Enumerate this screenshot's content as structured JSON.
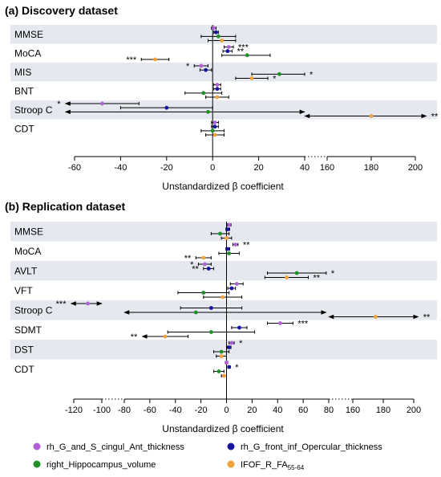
{
  "colors": {
    "rh_G_and_S_cingul_Ant_thickness": "#b05fd6",
    "rh_G_front_inf_Opercular_thickness": "#1414a0",
    "right_Hippocampus_volume": "#1f8f2a",
    "IFOF_R_FA": "#f2a23a",
    "band": "#e6e8f0"
  },
  "legend": [
    {
      "key": "rh_G_and_S_cingul_Ant_thickness",
      "label": "rh_G_and_S_cingul_Ant_thickness",
      "sub": ""
    },
    {
      "key": "rh_G_front_inf_Opercular_thickness",
      "label": "rh_G_front_inf_Opercular_thickness",
      "sub": ""
    },
    {
      "key": "right_Hippocampus_volume",
      "label": "right_Hippocampus_volume",
      "sub": ""
    },
    {
      "key": "IFOF_R_FA",
      "label": "IFOF_R_FA",
      "sub": "55-64"
    }
  ],
  "chart_data": [
    {
      "type": "forest",
      "panel": "(a)",
      "title": "Discovery dataset",
      "xlabel": "Unstandardized β coefficient",
      "axis": {
        "segments": [
          {
            "min": -60,
            "max": 40,
            "ticks": [
              -60,
              -40,
              -20,
              0,
              20,
              40
            ]
          },
          {
            "min": 160,
            "max": 200,
            "ticks": [
              160,
              180,
              200
            ]
          }
        ]
      },
      "rows": [
        {
          "label": "MMSE",
          "estimates": [
            {
              "series": "rh_G_and_S_cingul_Ant_thickness",
              "est": 0.5,
              "lo": -0.5,
              "hi": 1.5,
              "sig": ""
            },
            {
              "series": "rh_G_front_inf_Opercular_thickness",
              "est": 1.5,
              "lo": 0.5,
              "hi": 2.5,
              "sig": ""
            },
            {
              "series": "right_Hippocampus_volume",
              "est": 2.5,
              "lo": -5,
              "hi": 10,
              "sig": ""
            },
            {
              "series": "IFOF_R_FA",
              "est": 4,
              "lo": -2,
              "hi": 10,
              "sig": ""
            }
          ]
        },
        {
          "label": "MoCA",
          "estimates": [
            {
              "series": "rh_G_and_S_cingul_Ant_thickness",
              "est": 7,
              "lo": 5,
              "hi": 9,
              "sig": "***"
            },
            {
              "series": "rh_G_front_inf_Opercular_thickness",
              "est": 6.5,
              "lo": 4.5,
              "hi": 8.5,
              "sig": "**"
            },
            {
              "series": "right_Hippocampus_volume",
              "est": 15,
              "lo": 4,
              "hi": 25,
              "sig": ""
            },
            {
              "series": "IFOF_R_FA",
              "est": -25,
              "lo": -31,
              "hi": -19,
              "sig": "***"
            }
          ]
        },
        {
          "label": "MIS",
          "estimates": [
            {
              "series": "rh_G_and_S_cingul_Ant_thickness",
              "est": -5,
              "lo": -8,
              "hi": -2,
              "sig": "*"
            },
            {
              "series": "rh_G_front_inf_Opercular_thickness",
              "est": -3,
              "lo": -5.5,
              "hi": -0.5,
              "sig": ""
            },
            {
              "series": "right_Hippocampus_volume",
              "est": 29,
              "lo": 17,
              "hi": 41,
              "sig": "*"
            },
            {
              "series": "IFOF_R_FA",
              "est": 17,
              "lo": 10,
              "hi": 24,
              "sig": "*"
            }
          ]
        },
        {
          "label": "BNT",
          "estimates": [
            {
              "series": "rh_G_and_S_cingul_Ant_thickness",
              "est": 2,
              "lo": 0.5,
              "hi": 3.5,
              "sig": ""
            },
            {
              "series": "rh_G_front_inf_Opercular_thickness",
              "est": 2,
              "lo": 0.5,
              "hi": 3.5,
              "sig": ""
            },
            {
              "series": "right_Hippocampus_volume",
              "est": -4,
              "lo": -12,
              "hi": 4,
              "sig": ""
            },
            {
              "series": "IFOF_R_FA",
              "est": 2,
              "lo": -3,
              "hi": 7,
              "sig": ""
            }
          ]
        },
        {
          "label": "Stroop C",
          "estimates": [
            {
              "series": "rh_G_and_S_cingul_Ant_thickness",
              "est": -48,
              "lo": -64,
              "hi": -32,
              "arrowLo": true,
              "sig": "*"
            },
            {
              "series": "rh_G_front_inf_Opercular_thickness",
              "est": -20,
              "lo": -40,
              "hi": 0,
              "sig": ""
            },
            {
              "series": "right_Hippocampus_volume",
              "est": -2,
              "lo": -64,
              "hi": 45,
              "arrowLo": true,
              "arrowHi": true,
              "sig": ""
            },
            {
              "series": "IFOF_R_FA",
              "est": 180,
              "lo": 155,
              "hi": 205,
              "arrowLo": true,
              "arrowHi": true,
              "sig": "**"
            }
          ]
        },
        {
          "label": "CDT",
          "estimates": [
            {
              "series": "rh_G_and_S_cingul_Ant_thickness",
              "est": 1,
              "lo": -0.5,
              "hi": 2.5,
              "sig": ""
            },
            {
              "series": "rh_G_front_inf_Opercular_thickness",
              "est": 1,
              "lo": -0.5,
              "hi": 2.5,
              "sig": ""
            },
            {
              "series": "right_Hippocampus_volume",
              "est": 0,
              "lo": -5,
              "hi": 5,
              "sig": ""
            },
            {
              "series": "IFOF_R_FA",
              "est": 1,
              "lo": -3,
              "hi": 5,
              "sig": ""
            }
          ]
        }
      ]
    },
    {
      "type": "forest",
      "panel": "(b)",
      "title": "Replication dataset",
      "xlabel": "Unstandardized β coefficient",
      "axis": {
        "segments": [
          {
            "min": -120,
            "max": -100,
            "ticks": [
              -120,
              -100
            ]
          },
          {
            "min": -80,
            "max": 80,
            "ticks": [
              -80,
              -60,
              -40,
              -20,
              0,
              20,
              40,
              60,
              80
            ]
          },
          {
            "min": 160,
            "max": 200,
            "ticks": [
              160,
              180,
              200
            ]
          }
        ]
      },
      "rows": [
        {
          "label": "MMSE",
          "estimates": [
            {
              "series": "rh_G_and_S_cingul_Ant_thickness",
              "est": 2,
              "lo": 0.5,
              "hi": 3.5,
              "sig": ""
            },
            {
              "series": "rh_G_front_inf_Opercular_thickness",
              "est": 1,
              "lo": -0.5,
              "hi": 2.5,
              "sig": ""
            },
            {
              "series": "right_Hippocampus_volume",
              "est": -5,
              "lo": -12,
              "hi": 2,
              "sig": ""
            },
            {
              "series": "IFOF_R_FA",
              "est": 0,
              "lo": -4,
              "hi": 4,
              "sig": ""
            }
          ]
        },
        {
          "label": "MoCA",
          "estimates": [
            {
              "series": "rh_G_and_S_cingul_Ant_thickness",
              "est": 7,
              "lo": 5,
              "hi": 9,
              "sig": "**"
            },
            {
              "series": "rh_G_front_inf_Opercular_thickness",
              "est": 1,
              "lo": -0.5,
              "hi": 2.5,
              "sig": ""
            },
            {
              "series": "right_Hippocampus_volume",
              "est": 2,
              "lo": -6,
              "hi": 10,
              "sig": ""
            },
            {
              "series": "IFOF_R_FA",
              "est": -18,
              "lo": -24,
              "hi": -12,
              "sig": "**"
            }
          ]
        },
        {
          "label": "AVLT",
          "estimates": [
            {
              "series": "rh_G_and_S_cingul_Ant_thickness",
              "est": -17,
              "lo": -22,
              "hi": -12,
              "sig": "*"
            },
            {
              "series": "rh_G_front_inf_Opercular_thickness",
              "est": -14,
              "lo": -18,
              "hi": -10,
              "sig": "**"
            },
            {
              "series": "right_Hippocampus_volume",
              "est": 55,
              "lo": 32,
              "hi": 78,
              "sig": "*"
            },
            {
              "series": "IFOF_R_FA",
              "est": 47,
              "lo": 30,
              "hi": 64,
              "sig": "**"
            }
          ]
        },
        {
          "label": "VFT",
          "estimates": [
            {
              "series": "rh_G_and_S_cingul_Ant_thickness",
              "est": 8,
              "lo": 3,
              "hi": 13,
              "sig": ""
            },
            {
              "series": "rh_G_front_inf_Opercular_thickness",
              "est": 4,
              "lo": 1,
              "hi": 7,
              "sig": ""
            },
            {
              "series": "right_Hippocampus_volume",
              "est": -18,
              "lo": -38,
              "hi": 2,
              "sig": ""
            },
            {
              "series": "IFOF_R_FA",
              "est": -3,
              "lo": -18,
              "hi": 12,
              "sig": ""
            }
          ]
        },
        {
          "label": "Stroop C",
          "estimates": [
            {
              "series": "rh_G_and_S_cingul_Ant_thickness",
              "est": -110,
              "lo": -122,
              "hi": -98,
              "arrowLo": true,
              "arrowHi": true,
              "sig": "***"
            },
            {
              "series": "rh_G_front_inf_Opercular_thickness",
              "est": -12,
              "lo": -36,
              "hi": 12,
              "sig": ""
            },
            {
              "series": "right_Hippocampus_volume",
              "est": -24,
              "lo": -80,
              "hi": 78,
              "arrowLo": true,
              "arrowHi": true,
              "sig": ""
            },
            {
              "series": "IFOF_R_FA",
              "est": 175,
              "lo": 155,
              "hi": 203,
              "arrowLo": true,
              "arrowHi": true,
              "sig": "**"
            }
          ]
        },
        {
          "label": "SDMT",
          "estimates": [
            {
              "series": "rh_G_and_S_cingul_Ant_thickness",
              "est": 42,
              "lo": 32,
              "hi": 52,
              "sig": "***"
            },
            {
              "series": "rh_G_front_inf_Opercular_thickness",
              "est": 10,
              "lo": 4,
              "hi": 16,
              "sig": ""
            },
            {
              "series": "right_Hippocampus_volume",
              "est": -12,
              "lo": -46,
              "hi": 22,
              "sig": ""
            },
            {
              "series": "IFOF_R_FA",
              "est": -48,
              "lo": -66,
              "hi": -30,
              "arrowLo": true,
              "sig": "**"
            }
          ]
        },
        {
          "label": "DST",
          "estimates": [
            {
              "series": "rh_G_and_S_cingul_Ant_thickness",
              "est": 4,
              "lo": 2,
              "hi": 6,
              "sig": "*"
            },
            {
              "series": "rh_G_front_inf_Opercular_thickness",
              "est": 2,
              "lo": 0.5,
              "hi": 3.5,
              "sig": ""
            },
            {
              "series": "right_Hippocampus_volume",
              "est": -4,
              "lo": -10,
              "hi": 2,
              "sig": ""
            },
            {
              "series": "IFOF_R_FA",
              "est": -4,
              "lo": -8,
              "hi": 0,
              "sig": ""
            }
          ]
        },
        {
          "label": "CDT",
          "estimates": [
            {
              "series": "rh_G_and_S_cingul_Ant_thickness",
              "est": 0,
              "lo": -1,
              "hi": 1,
              "sig": ""
            },
            {
              "series": "rh_G_front_inf_Opercular_thickness",
              "est": 2,
              "lo": 1,
              "hi": 3,
              "sig": "*"
            },
            {
              "series": "right_Hippocampus_volume",
              "est": -6,
              "lo": -10,
              "hi": -2,
              "sig": ""
            },
            {
              "series": "IFOF_R_FA",
              "est": -2,
              "lo": -4,
              "hi": 0,
              "sig": ""
            }
          ]
        }
      ]
    }
  ]
}
